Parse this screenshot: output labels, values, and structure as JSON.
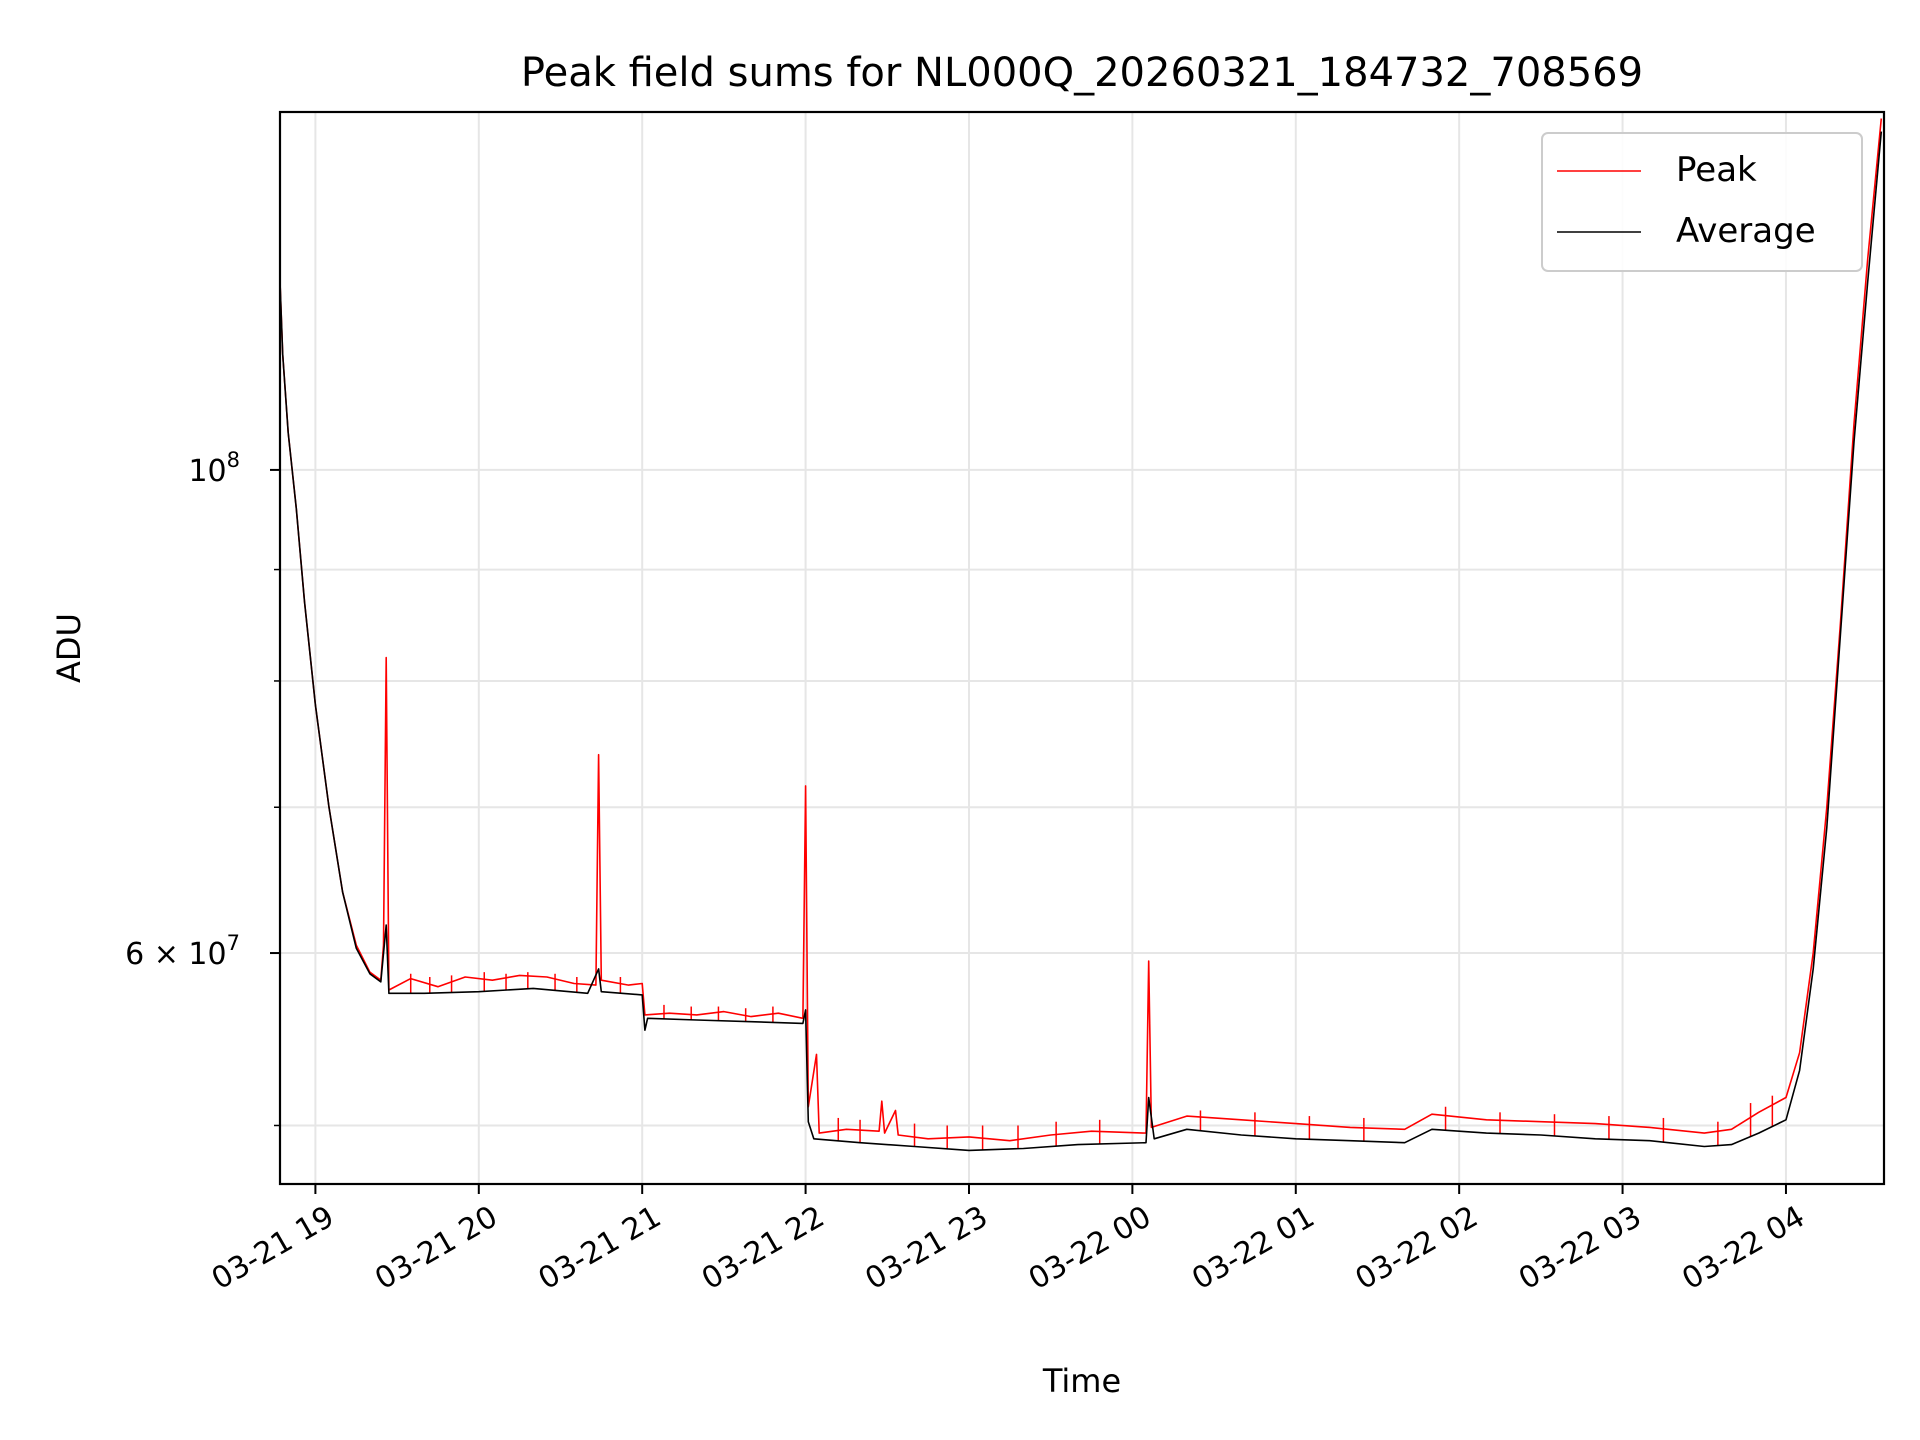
{
  "chart_data": {
    "type": "line",
    "title": "Peak field sums for NL000Q_20260321_184732_708569",
    "xlabel": "Time",
    "ylabel": "ADU",
    "yscale": "log",
    "grid": true,
    "legend_position": "top-right",
    "xlim": [
      "2026-03-21 18:47",
      "2026-03-22 04:36"
    ],
    "ylim": [
      47000000,
      146000000
    ],
    "x_ticks": [
      {
        "value": "2026-03-21 19:00",
        "label": "03-21 19"
      },
      {
        "value": "2026-03-21 20:00",
        "label": "03-21 20"
      },
      {
        "value": "2026-03-21 21:00",
        "label": "03-21 21"
      },
      {
        "value": "2026-03-21 22:00",
        "label": "03-21 22"
      },
      {
        "value": "2026-03-21 23:00",
        "label": "03-21 23"
      },
      {
        "value": "2026-03-22 00:00",
        "label": "03-22 00"
      },
      {
        "value": "2026-03-22 01:00",
        "label": "03-22 01"
      },
      {
        "value": "2026-03-22 02:00",
        "label": "03-22 02"
      },
      {
        "value": "2026-03-22 03:00",
        "label": "03-22 03"
      },
      {
        "value": "2026-03-22 04:00",
        "label": "03-22 04"
      }
    ],
    "y_ticks_major": [
      {
        "value": 60000000,
        "label_base": "6 × 10",
        "label_exp": "7"
      },
      {
        "value": 100000000,
        "label_base": "10",
        "label_exp": "8"
      }
    ],
    "y_ticks_minor": [
      50000000,
      70000000,
      80000000,
      90000000
    ],
    "series": [
      {
        "name": "Peak",
        "color": "#ff0000",
        "points": [
          [
            "2026-03-21 18:47",
            122000000
          ],
          [
            "2026-03-21 18:48",
            113000000
          ],
          [
            "2026-03-21 18:50",
            104000000
          ],
          [
            "2026-03-21 18:53",
            96000000
          ],
          [
            "2026-03-21 18:56",
            87000000
          ],
          [
            "2026-03-21 19:00",
            78000000
          ],
          [
            "2026-03-21 19:05",
            70000000
          ],
          [
            "2026-03-21 19:10",
            64000000
          ],
          [
            "2026-03-21 19:15",
            60500000
          ],
          [
            "2026-03-21 19:20",
            58800000
          ],
          [
            "2026-03-21 19:24",
            58300000
          ],
          [
            "2026-03-21 19:25",
            60500000
          ],
          [
            "2026-03-21 19:26",
            82000000
          ],
          [
            "2026-03-21 19:27",
            57700000
          ],
          [
            "2026-03-21 19:35",
            58400000
          ],
          [
            "2026-03-21 19:45",
            57900000
          ],
          [
            "2026-03-21 19:55",
            58500000
          ],
          [
            "2026-03-21 20:05",
            58300000
          ],
          [
            "2026-03-21 20:15",
            58600000
          ],
          [
            "2026-03-21 20:25",
            58500000
          ],
          [
            "2026-03-21 20:35",
            58100000
          ],
          [
            "2026-03-21 20:43",
            58000000
          ],
          [
            "2026-03-21 20:44",
            74000000
          ],
          [
            "2026-03-21 20:45",
            58300000
          ],
          [
            "2026-03-21 20:55",
            58000000
          ],
          [
            "2026-03-21 21:00",
            58100000
          ],
          [
            "2026-03-21 21:01",
            56200000
          ],
          [
            "2026-03-21 21:10",
            56300000
          ],
          [
            "2026-03-21 21:20",
            56200000
          ],
          [
            "2026-03-21 21:30",
            56400000
          ],
          [
            "2026-03-21 21:40",
            56100000
          ],
          [
            "2026-03-21 21:50",
            56300000
          ],
          [
            "2026-03-21 21:59",
            56000000
          ],
          [
            "2026-03-21 22:00",
            71600000
          ],
          [
            "2026-03-21 22:01",
            51000000
          ],
          [
            "2026-03-21 22:04",
            53900000
          ],
          [
            "2026-03-21 22:05",
            49600000
          ],
          [
            "2026-03-21 22:15",
            49800000
          ],
          [
            "2026-03-21 22:27",
            49700000
          ],
          [
            "2026-03-21 22:28",
            51300000
          ],
          [
            "2026-03-21 22:29",
            49600000
          ],
          [
            "2026-03-21 22:33",
            50800000
          ],
          [
            "2026-03-21 22:34",
            49500000
          ],
          [
            "2026-03-21 22:45",
            49300000
          ],
          [
            "2026-03-21 23:00",
            49400000
          ],
          [
            "2026-03-21 23:15",
            49200000
          ],
          [
            "2026-03-21 23:30",
            49500000
          ],
          [
            "2026-03-21 23:45",
            49700000
          ],
          [
            "2026-03-22 00:05",
            49600000
          ],
          [
            "2026-03-22 00:06",
            59500000
          ],
          [
            "2026-03-22 00:07",
            49900000
          ],
          [
            "2026-03-22 00:20",
            50500000
          ],
          [
            "2026-03-22 00:40",
            50300000
          ],
          [
            "2026-03-22 01:00",
            50100000
          ],
          [
            "2026-03-22 01:20",
            49900000
          ],
          [
            "2026-03-22 01:40",
            49800000
          ],
          [
            "2026-03-22 01:50",
            50600000
          ],
          [
            "2026-03-22 02:10",
            50300000
          ],
          [
            "2026-03-22 02:30",
            50200000
          ],
          [
            "2026-03-22 02:50",
            50100000
          ],
          [
            "2026-03-22 03:10",
            49900000
          ],
          [
            "2026-03-22 03:30",
            49600000
          ],
          [
            "2026-03-22 03:40",
            49800000
          ],
          [
            "2026-03-22 03:50",
            50700000
          ],
          [
            "2026-03-22 04:00",
            51500000
          ],
          [
            "2026-03-22 04:05",
            54000000
          ],
          [
            "2026-03-22 04:10",
            60000000
          ],
          [
            "2026-03-22 04:15",
            70000000
          ],
          [
            "2026-03-22 04:20",
            85000000
          ],
          [
            "2026-03-22 04:25",
            105000000
          ],
          [
            "2026-03-22 04:30",
            125000000
          ],
          [
            "2026-03-22 04:35",
            145000000
          ]
        ]
      },
      {
        "name": "Average",
        "color": "#000000",
        "points": [
          [
            "2026-03-21 18:47",
            122000000
          ],
          [
            "2026-03-21 18:48",
            113000000
          ],
          [
            "2026-03-21 18:50",
            104000000
          ],
          [
            "2026-03-21 18:53",
            96000000
          ],
          [
            "2026-03-21 18:56",
            87000000
          ],
          [
            "2026-03-21 19:00",
            78000000
          ],
          [
            "2026-03-21 19:05",
            70000000
          ],
          [
            "2026-03-21 19:10",
            64000000
          ],
          [
            "2026-03-21 19:15",
            60300000
          ],
          [
            "2026-03-21 19:20",
            58700000
          ],
          [
            "2026-03-21 19:24",
            58200000
          ],
          [
            "2026-03-21 19:26",
            61800000
          ],
          [
            "2026-03-21 19:27",
            57500000
          ],
          [
            "2026-03-21 19:40",
            57500000
          ],
          [
            "2026-03-21 20:00",
            57600000
          ],
          [
            "2026-03-21 20:20",
            57800000
          ],
          [
            "2026-03-21 20:40",
            57500000
          ],
          [
            "2026-03-21 20:44",
            59000000
          ],
          [
            "2026-03-21 20:45",
            57600000
          ],
          [
            "2026-03-21 21:00",
            57400000
          ],
          [
            "2026-03-21 21:01",
            55300000
          ],
          [
            "2026-03-21 21:02",
            56000000
          ],
          [
            "2026-03-21 21:20",
            55900000
          ],
          [
            "2026-03-21 21:40",
            55800000
          ],
          [
            "2026-03-21 21:59",
            55700000
          ],
          [
            "2026-03-21 22:00",
            56500000
          ],
          [
            "2026-03-21 22:01",
            50200000
          ],
          [
            "2026-03-21 22:03",
            49300000
          ],
          [
            "2026-03-21 22:20",
            49100000
          ],
          [
            "2026-03-21 22:40",
            48900000
          ],
          [
            "2026-03-21 23:00",
            48700000
          ],
          [
            "2026-03-21 23:20",
            48800000
          ],
          [
            "2026-03-21 23:40",
            49000000
          ],
          [
            "2026-03-22 00:05",
            49100000
          ],
          [
            "2026-03-22 00:06",
            51500000
          ],
          [
            "2026-03-22 00:08",
            49300000
          ],
          [
            "2026-03-22 00:20",
            49800000
          ],
          [
            "2026-03-22 00:40",
            49500000
          ],
          [
            "2026-03-22 01:00",
            49300000
          ],
          [
            "2026-03-22 01:20",
            49200000
          ],
          [
            "2026-03-22 01:40",
            49100000
          ],
          [
            "2026-03-22 01:50",
            49800000
          ],
          [
            "2026-03-22 02:10",
            49600000
          ],
          [
            "2026-03-22 02:30",
            49500000
          ],
          [
            "2026-03-22 02:50",
            49300000
          ],
          [
            "2026-03-22 03:10",
            49200000
          ],
          [
            "2026-03-22 03:30",
            48900000
          ],
          [
            "2026-03-22 03:40",
            49000000
          ],
          [
            "2026-03-22 03:50",
            49600000
          ],
          [
            "2026-03-22 04:00",
            50300000
          ],
          [
            "2026-03-22 04:05",
            53000000
          ],
          [
            "2026-03-22 04:10",
            59000000
          ],
          [
            "2026-03-22 04:15",
            68500000
          ],
          [
            "2026-03-22 04:20",
            84000000
          ],
          [
            "2026-03-22 04:25",
            103000000
          ],
          [
            "2026-03-22 04:30",
            122000000
          ],
          [
            "2026-03-22 04:35",
            143000000
          ]
        ]
      }
    ],
    "peak_spikes": [
      {
        "t": "2026-03-21 19:35",
        "y": 58700000
      },
      {
        "t": "2026-03-21 19:42",
        "y": 58500000
      },
      {
        "t": "2026-03-21 19:50",
        "y": 58600000
      },
      {
        "t": "2026-03-21 20:02",
        "y": 58800000
      },
      {
        "t": "2026-03-21 20:10",
        "y": 58700000
      },
      {
        "t": "2026-03-21 20:18",
        "y": 58800000
      },
      {
        "t": "2026-03-21 20:28",
        "y": 58700000
      },
      {
        "t": "2026-03-21 20:36",
        "y": 58500000
      },
      {
        "t": "2026-03-21 20:52",
        "y": 58500000
      },
      {
        "t": "2026-03-21 21:08",
        "y": 56800000
      },
      {
        "t": "2026-03-21 21:18",
        "y": 56700000
      },
      {
        "t": "2026-03-21 21:28",
        "y": 56700000
      },
      {
        "t": "2026-03-21 21:38",
        "y": 56600000
      },
      {
        "t": "2026-03-21 21:48",
        "y": 56700000
      },
      {
        "t": "2026-03-21 22:12",
        "y": 50400000
      },
      {
        "t": "2026-03-21 22:20",
        "y": 50300000
      },
      {
        "t": "2026-03-21 22:40",
        "y": 50100000
      },
      {
        "t": "2026-03-21 22:52",
        "y": 50000000
      },
      {
        "t": "2026-03-21 23:05",
        "y": 50000000
      },
      {
        "t": "2026-03-21 23:18",
        "y": 50000000
      },
      {
        "t": "2026-03-21 23:32",
        "y": 50200000
      },
      {
        "t": "2026-03-21 23:48",
        "y": 50300000
      },
      {
        "t": "2026-03-22 00:25",
        "y": 50800000
      },
      {
        "t": "2026-03-22 00:45",
        "y": 50700000
      },
      {
        "t": "2026-03-22 01:05",
        "y": 50500000
      },
      {
        "t": "2026-03-22 01:25",
        "y": 50400000
      },
      {
        "t": "2026-03-22 01:55",
        "y": 51000000
      },
      {
        "t": "2026-03-22 02:15",
        "y": 50700000
      },
      {
        "t": "2026-03-22 02:35",
        "y": 50600000
      },
      {
        "t": "2026-03-22 02:55",
        "y": 50500000
      },
      {
        "t": "2026-03-22 03:15",
        "y": 50400000
      },
      {
        "t": "2026-03-22 03:35",
        "y": 50200000
      },
      {
        "t": "2026-03-22 03:47",
        "y": 51200000
      },
      {
        "t": "2026-03-22 03:55",
        "y": 51600000
      }
    ]
  }
}
